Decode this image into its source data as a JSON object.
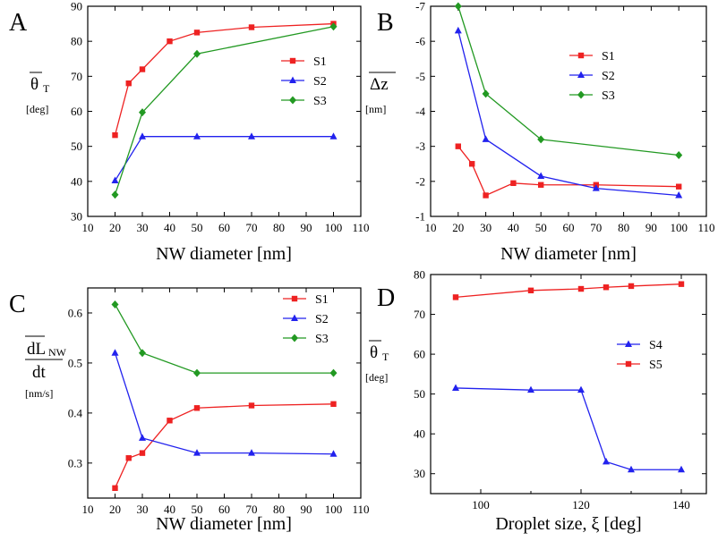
{
  "panels": [
    {
      "letter": "A",
      "ylabel": {
        "main": "θ",
        "sub": "T",
        "unit": "[deg]",
        "overbar": true
      },
      "xlabel": "NW diameter [nm]"
    },
    {
      "letter": "B",
      "ylabel": {
        "main": "Δz",
        "sub": "",
        "unit": "[nm]",
        "overbar": true
      },
      "xlabel": "NW diameter [nm]"
    },
    {
      "letter": "C",
      "ylabel": {
        "main": "dL",
        "sub": "NW",
        "denominator": "dt",
        "unit": "[nm/s]",
        "overbar": true
      },
      "xlabel": "NW diameter [nm]"
    },
    {
      "letter": "D",
      "ylabel": {
        "main": "θ",
        "sub": "T",
        "unit": "[deg]",
        "overbar": true
      },
      "xlabel": "Droplet size,  ξ [deg]"
    }
  ],
  "colors": {
    "red": "#ee2222",
    "blue": "#2222ee",
    "green": "#229922"
  },
  "chart_data": [
    {
      "type": "line",
      "panel": "A",
      "xlabel": "NW diameter [nm]",
      "ylabel": "θT [deg]",
      "xlim": [
        10,
        110
      ],
      "ylim": [
        30,
        90
      ],
      "xticks": [
        10,
        20,
        30,
        40,
        50,
        60,
        70,
        80,
        90,
        100,
        110
      ],
      "yticks": [
        30,
        40,
        50,
        60,
        70,
        80,
        90
      ],
      "legend_position": "right",
      "series": [
        {
          "name": "S1",
          "color": "#ee2222",
          "marker": "square",
          "x": [
            20,
            25,
            30,
            40,
            50,
            70,
            100
          ],
          "y": [
            53.2,
            68,
            72,
            80,
            82.5,
            84,
            85
          ]
        },
        {
          "name": "S2",
          "color": "#2222ee",
          "marker": "triangle",
          "x": [
            20,
            30,
            50,
            70,
            100
          ],
          "y": [
            40.2,
            52.8,
            52.8,
            52.8,
            52.8
          ]
        },
        {
          "name": "S3",
          "color": "#229922",
          "marker": "diamond",
          "x": [
            20,
            30,
            50,
            100
          ],
          "y": [
            36.2,
            59.7,
            76.4,
            84.2
          ]
        }
      ]
    },
    {
      "type": "line",
      "panel": "B",
      "xlabel": "NW diameter [nm]",
      "ylabel": "Δz [nm]",
      "xlim": [
        10,
        110
      ],
      "ylim": [
        -1,
        -7
      ],
      "y_inverted": true,
      "xticks": [
        10,
        20,
        30,
        40,
        50,
        60,
        70,
        80,
        90,
        100,
        110
      ],
      "yticks": [
        -1,
        -2,
        -3,
        -4,
        -5,
        -6,
        -7
      ],
      "legend_position": "top-right",
      "series": [
        {
          "name": "S1",
          "color": "#ee2222",
          "marker": "square",
          "x": [
            20,
            25,
            30,
            40,
            50,
            70,
            100
          ],
          "y": [
            -3.0,
            -2.5,
            -1.6,
            -1.95,
            -1.9,
            -1.9,
            -1.85
          ]
        },
        {
          "name": "S2",
          "color": "#2222ee",
          "marker": "triangle",
          "x": [
            20,
            30,
            50,
            70,
            100
          ],
          "y": [
            -6.3,
            -3.2,
            -2.15,
            -1.8,
            -1.6
          ]
        },
        {
          "name": "S3",
          "color": "#229922",
          "marker": "diamond",
          "x": [
            20,
            30,
            50,
            100
          ],
          "y": [
            -7.0,
            -4.5,
            -3.2,
            -2.75
          ]
        }
      ]
    },
    {
      "type": "line",
      "panel": "C",
      "xlabel": "NW diameter [nm]",
      "ylabel": "dLNW/dt [nm/s]",
      "xlim": [
        10,
        110
      ],
      "ylim": [
        0.23,
        0.65
      ],
      "xticks": [
        10,
        20,
        30,
        40,
        50,
        60,
        70,
        80,
        90,
        100,
        110
      ],
      "yticks": [
        0.3,
        0.4,
        0.5,
        0.6
      ],
      "ytick_labels": [
        "0.3",
        "0.4",
        "0.5",
        "0.6"
      ],
      "legend_position": "top-right",
      "series": [
        {
          "name": "S1",
          "color": "#ee2222",
          "marker": "square",
          "x": [
            20,
            25,
            30,
            40,
            50,
            70,
            100
          ],
          "y": [
            0.25,
            0.31,
            0.32,
            0.385,
            0.41,
            0.415,
            0.418
          ]
        },
        {
          "name": "S2",
          "color": "#2222ee",
          "marker": "triangle",
          "x": [
            20,
            30,
            50,
            70,
            100
          ],
          "y": [
            0.52,
            0.35,
            0.32,
            0.32,
            0.318
          ]
        },
        {
          "name": "S3",
          "color": "#229922",
          "marker": "diamond",
          "x": [
            20,
            30,
            50,
            100
          ],
          "y": [
            0.617,
            0.52,
            0.48,
            0.48
          ]
        }
      ]
    },
    {
      "type": "line",
      "panel": "D",
      "xlabel": "Droplet size,  ξ [deg]",
      "ylabel": "θT [deg]",
      "xlim": [
        90,
        145
      ],
      "ylim": [
        25,
        80
      ],
      "xticks": [
        100,
        120,
        140
      ],
      "xticks_minor": [
        90,
        110,
        130
      ],
      "yticks": [
        30,
        40,
        50,
        60,
        70,
        80
      ],
      "legend_position": "right",
      "series": [
        {
          "name": "S4",
          "color": "#2222ee",
          "marker": "triangle",
          "x": [
            95,
            110,
            120,
            125,
            130,
            140
          ],
          "y": [
            51.5,
            51,
            51,
            33,
            31,
            31
          ]
        },
        {
          "name": "S5",
          "color": "#ee2222",
          "marker": "square",
          "x": [
            95,
            110,
            120,
            125,
            130,
            140
          ],
          "y": [
            74.3,
            76,
            76.4,
            76.8,
            77.1,
            77.6
          ]
        }
      ]
    }
  ]
}
